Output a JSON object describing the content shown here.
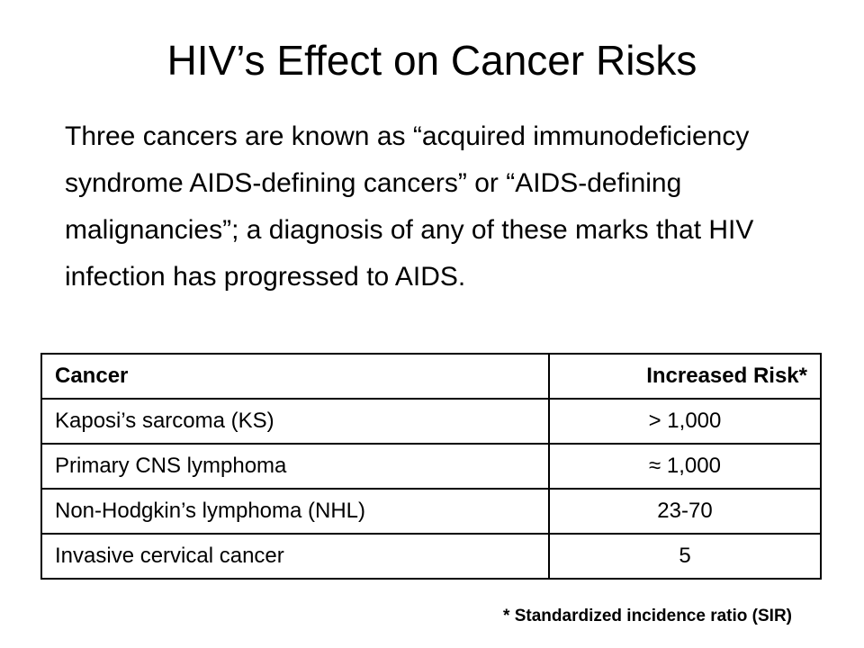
{
  "slide": {
    "title": "HIV’s Effect on Cancer Risks",
    "body": "Three cancers are known as “acquired immunodeficiency syndrome AIDS-defining cancers” or “AIDS-defining malignancies”; a diagnosis of any of these marks that HIV infection has progressed to AIDS.",
    "footnote": "* Standardized incidence ratio (SIR)"
  },
  "table": {
    "headers": [
      "Cancer",
      "Increased Risk*"
    ],
    "rows": [
      [
        "Kaposi’s sarcoma (KS)",
        "> 1,000"
      ],
      [
        "Primary CNS lymphoma",
        "≈ 1,000"
      ],
      [
        "Non-Hodgkin’s lymphoma (NHL)",
        "23-70"
      ],
      [
        "Invasive cervical cancer",
        "5"
      ]
    ]
  }
}
